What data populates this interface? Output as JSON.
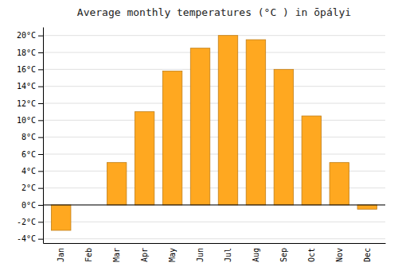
{
  "chart_data": {
    "type": "bar",
    "title": "Average monthly temperatures (°C ) in ōpályi",
    "categories": [
      "Jan",
      "Feb",
      "Mar",
      "Apr",
      "May",
      "Jun",
      "Jul",
      "Aug",
      "Sep",
      "Oct",
      "Nov",
      "Dec"
    ],
    "values": [
      -3.0,
      0.0,
      5.0,
      11.0,
      15.8,
      18.5,
      20.0,
      19.5,
      16.0,
      10.5,
      5.0,
      -0.5
    ],
    "color": "#FFA820",
    "ylim": [
      -4.5,
      21.0
    ],
    "yticks": [
      {
        "value": -4,
        "label": "-4°C"
      },
      {
        "value": -2,
        "label": "-2°C"
      },
      {
        "value": 0,
        "label": "0°C"
      },
      {
        "value": 2,
        "label": "2°C"
      },
      {
        "value": 4,
        "label": "4°C"
      },
      {
        "value": 6,
        "label": "6°C"
      },
      {
        "value": 8,
        "label": "8°C"
      },
      {
        "value": 10,
        "label": "10°C"
      },
      {
        "value": 12,
        "label": "12°C"
      },
      {
        "value": 14,
        "label": "14°C"
      },
      {
        "value": 16,
        "label": "16°C"
      },
      {
        "value": 18,
        "label": "18°C"
      },
      {
        "value": 20,
        "label": "20°C"
      }
    ],
    "grid": true
  }
}
